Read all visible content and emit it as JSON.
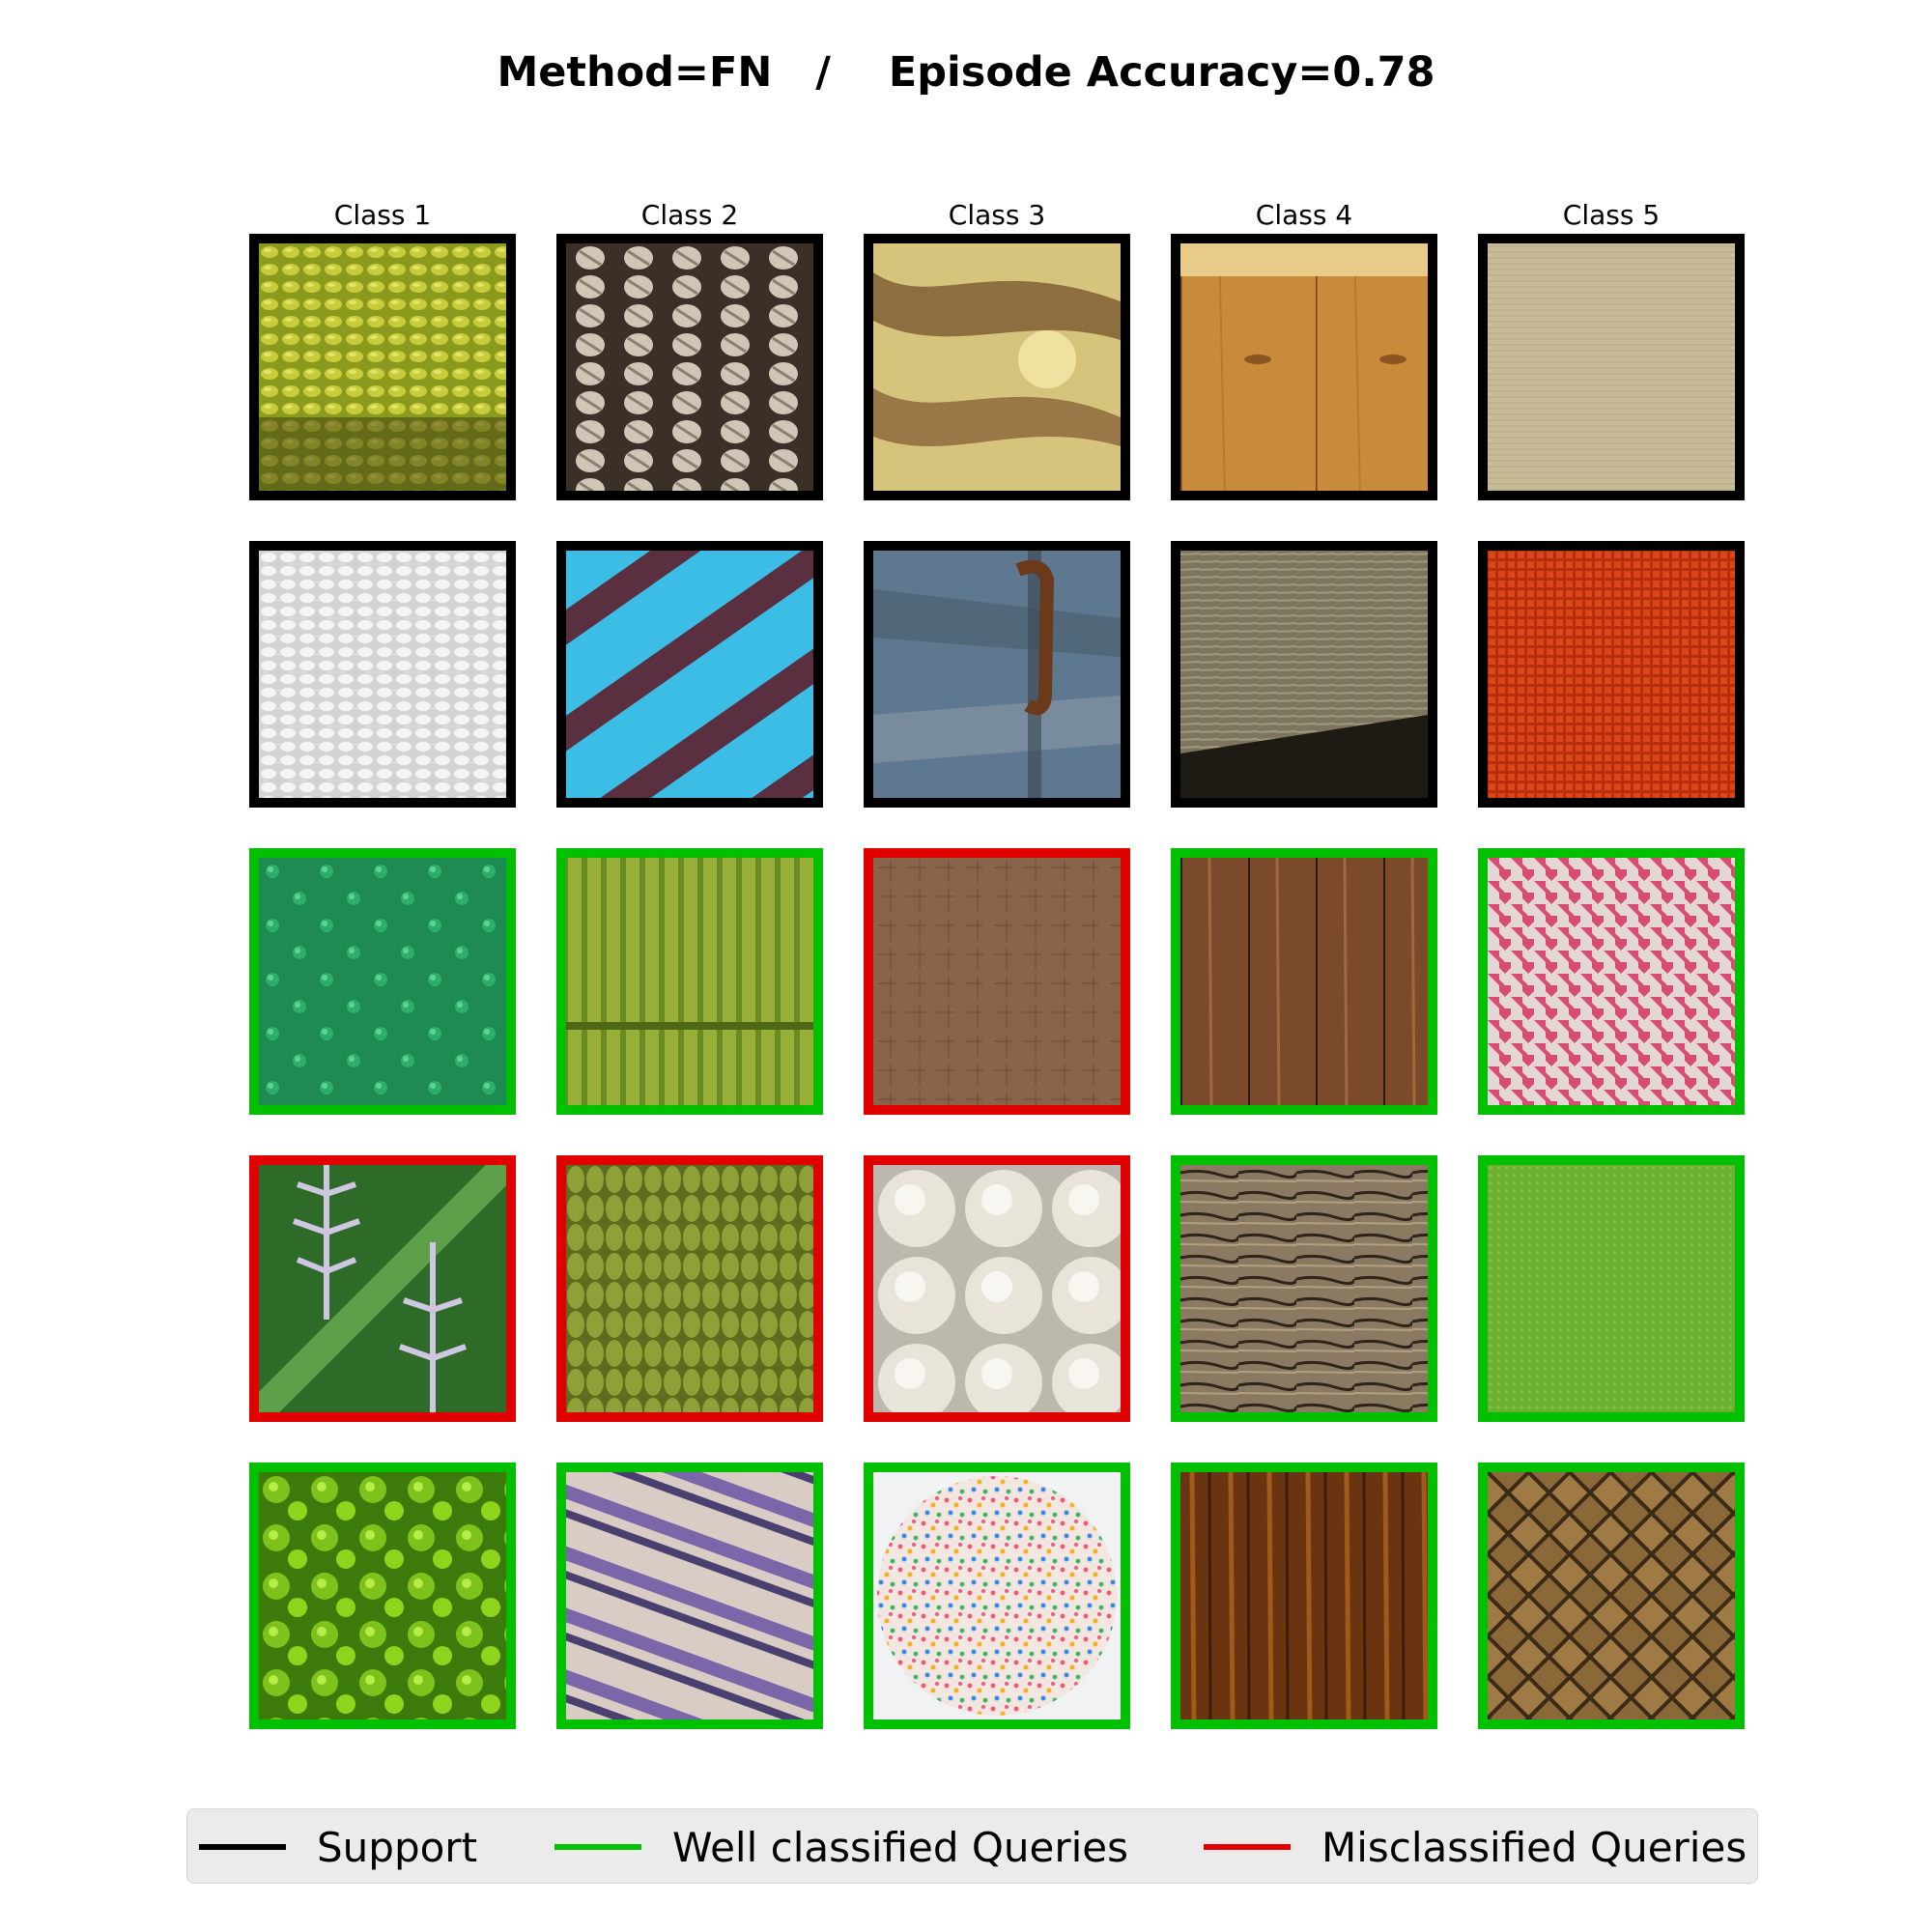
{
  "title_parts": {
    "method": "Method=FN",
    "separator": "/",
    "accuracy": "Episode Accuracy=0.78"
  },
  "classes": [
    "Class 1",
    "Class 2",
    "Class 3",
    "Class 4",
    "Class 5"
  ],
  "colors": {
    "support": "#000000",
    "well": "#00c000",
    "mis": "#e00000"
  },
  "grid": [
    [
      {
        "status": "support",
        "texture": "yellow-green bumpy fruit peel"
      },
      {
        "status": "support",
        "texture": "cream cable knit"
      },
      {
        "status": "support",
        "texture": "mottled brown stone"
      },
      {
        "status": "support",
        "texture": "light wood planks"
      },
      {
        "status": "support",
        "texture": "beige woven fabric"
      }
    ],
    [
      {
        "status": "support",
        "texture": "white quilted fabric"
      },
      {
        "status": "support",
        "texture": "blue and purple striped knit"
      },
      {
        "status": "support",
        "texture": "weathered blue painted wood with rusty hook"
      },
      {
        "status": "support",
        "texture": "weathered grey wood"
      },
      {
        "status": "support",
        "texture": "red woven fabric"
      }
    ],
    [
      {
        "status": "well",
        "texture": "green bumpy plastic ball"
      },
      {
        "status": "well",
        "texture": "green ribbed knit hat"
      },
      {
        "status": "mis",
        "texture": "brown crosshatch textile"
      },
      {
        "status": "well",
        "texture": "dark wood planks"
      },
      {
        "status": "well",
        "texture": "pink and white woven fabric"
      }
    ],
    [
      {
        "status": "mis",
        "texture": "leaf earrings on green leaf"
      },
      {
        "status": "mis",
        "texture": "green chunky knit"
      },
      {
        "status": "mis",
        "texture": "powdered sugar cookies"
      },
      {
        "status": "well",
        "texture": "cracked weathered wood"
      },
      {
        "status": "well",
        "texture": "green felt fabric"
      }
    ],
    [
      {
        "status": "well",
        "texture": "green moss"
      },
      {
        "status": "well",
        "texture": "purple and white knit"
      },
      {
        "status": "well",
        "texture": "cupcake with sprinkles"
      },
      {
        "status": "well",
        "texture": "dark stained wood"
      },
      {
        "status": "well",
        "texture": "brown basket weave"
      }
    ]
  ],
  "legend": {
    "support": "Support",
    "well": "Well classified Queries",
    "mis": "Misclassified Queries"
  }
}
